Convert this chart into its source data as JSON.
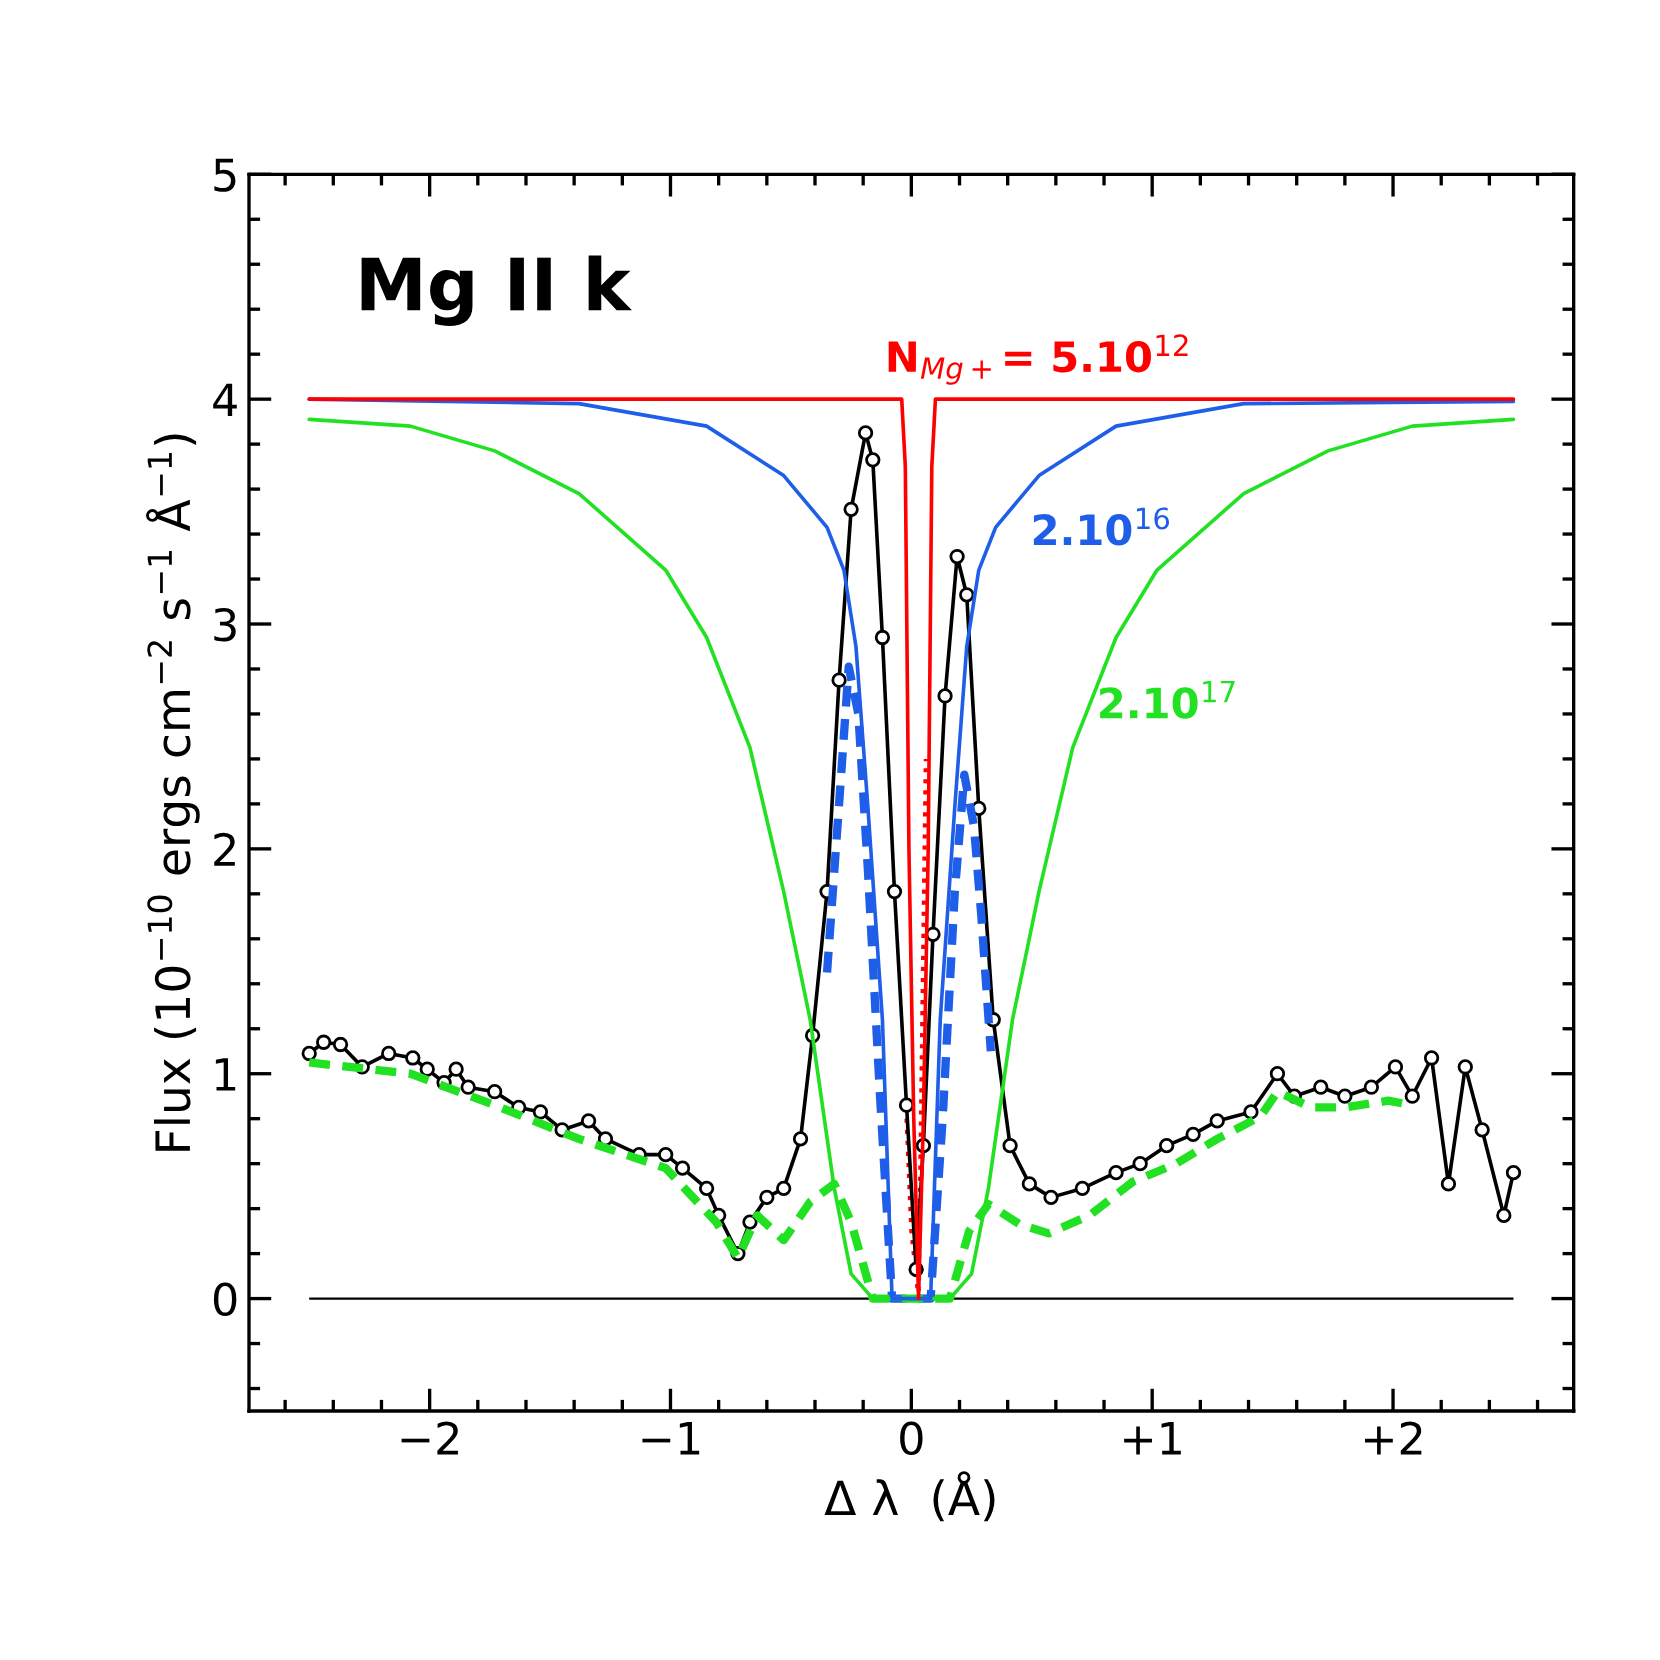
{
  "chart_data": {
    "type": "line",
    "title": "Mg II k",
    "xlabel": "Δ λ  (Å)",
    "ylabel": "Flux (10$^{−10}$ ergs cm$^{−2}$ s$^{−1}$ Å$^{−1}$)",
    "xlim": [
      -2.75,
      2.75
    ],
    "ylim": [
      -0.5,
      5
    ],
    "xticks": [
      {
        "value": -2,
        "label": "−2"
      },
      {
        "value": -1,
        "label": "−1"
      },
      0,
      {
        "value": 1,
        "label": "+1"
      },
      {
        "value": 2,
        "label": "+2"
      }
    ],
    "yticks": [
      0,
      1,
      2,
      3,
      4,
      5
    ],
    "grid": false,
    "legend": false,
    "ref_lines": [
      {
        "axis": "y",
        "value": 0,
        "color": "#000000",
        "line_style": "solid"
      }
    ],
    "series": [
      {
        "name": "N$_{Mg+}$= 5.10$^{12}$",
        "color": "#ff0000",
        "line_style": "solid",
        "marker": "none",
        "x": [
          -2.5,
          -0.04,
          -0.025,
          -0.01,
          0.01,
          0.03,
          0.05,
          0.07,
          0.085,
          0.1,
          2.5
        ],
        "values": [
          4.0,
          4.0,
          3.7,
          2.0,
          0.8,
          0.0,
          0.8,
          2.0,
          3.7,
          4.0,
          4.0
        ]
      },
      {
        "name": "2.10$^{16}$",
        "color": "#1f5ee8",
        "line_style": "solid",
        "marker": "none",
        "x": [
          -2.5,
          -1.38,
          -0.85,
          -0.53,
          -0.35,
          -0.28,
          -0.23,
          -0.18,
          -0.12,
          -0.08,
          0.08,
          0.12,
          0.18,
          0.23,
          0.28,
          0.35,
          0.53,
          0.85,
          1.38,
          2.5
        ],
        "values": [
          4.0,
          3.98,
          3.88,
          3.66,
          3.43,
          3.24,
          2.9,
          2.18,
          1.24,
          0.0,
          0.0,
          1.24,
          2.18,
          2.9,
          3.24,
          3.43,
          3.66,
          3.88,
          3.98,
          3.99
        ]
      },
      {
        "name": "2.10$^{17}$",
        "color": "#22e022",
        "line_style": "solid",
        "marker": "none",
        "x": [
          -2.5,
          -2.08,
          -1.73,
          -1.38,
          -1.02,
          -0.85,
          -0.67,
          -0.53,
          -0.42,
          -0.32,
          -0.25,
          -0.16,
          0.16,
          0.25,
          0.32,
          0.42,
          0.53,
          0.67,
          0.85,
          1.02,
          1.38,
          1.73,
          2.08,
          2.5
        ],
        "values": [
          3.91,
          3.88,
          3.77,
          3.58,
          3.24,
          2.94,
          2.45,
          1.81,
          1.24,
          0.49,
          0.11,
          0.0,
          0.0,
          0.11,
          0.49,
          1.24,
          1.81,
          2.45,
          2.94,
          3.24,
          3.58,
          3.77,
          3.88,
          3.91
        ]
      },
      {
        "color": "#22e022",
        "line_style": "dashed",
        "marker": "none",
        "x": [
          -2.5,
          -2.08,
          -1.73,
          -1.38,
          -1.02,
          -0.81,
          -0.72,
          -0.64,
          -0.53,
          -0.42,
          -0.32,
          -0.25,
          -0.16,
          0.16,
          0.24,
          0.32,
          0.45,
          0.57,
          0.74,
          0.92,
          1.1,
          1.27,
          1.45,
          1.52,
          1.66,
          1.8,
          1.98,
          2.08
        ],
        "values": [
          1.05,
          1.0,
          0.86,
          0.71,
          0.58,
          0.34,
          0.18,
          0.37,
          0.26,
          0.43,
          0.51,
          0.34,
          0.0,
          0.0,
          0.3,
          0.42,
          0.33,
          0.29,
          0.37,
          0.52,
          0.6,
          0.71,
          0.81,
          0.92,
          0.85,
          0.85,
          0.88,
          0.86
        ]
      },
      {
        "color": "#1f5ee8",
        "line_style": "dashed",
        "marker": "none",
        "x": [
          -0.35,
          -0.3,
          -0.26,
          -0.22,
          -0.18,
          -0.13,
          -0.08,
          0.08,
          0.13,
          0.18,
          0.22,
          0.26,
          0.29,
          0.33
        ],
        "values": [
          1.45,
          2.2,
          2.81,
          2.6,
          1.9,
          0.9,
          0.0,
          0.0,
          0.8,
          1.8,
          2.33,
          2.1,
          1.71,
          1.1
        ]
      },
      {
        "color": "#000000",
        "line_style": "solid",
        "marker": "circle",
        "x": [
          -2.5,
          -2.44,
          -2.37,
          -2.28,
          -2.17,
          -2.07,
          -2.01,
          -1.94,
          -1.89,
          -1.84,
          -1.73,
          -1.63,
          -1.54,
          -1.45,
          -1.34,
          -1.27,
          -1.13,
          -1.02,
          -0.95,
          -0.85,
          -0.8,
          -0.72,
          -0.67,
          -0.6,
          -0.53,
          -0.46,
          -0.41,
          -0.35,
          -0.3,
          -0.25,
          -0.19,
          -0.16,
          -0.12,
          -0.07,
          -0.02,
          0.02,
          0.05,
          0.09,
          0.14,
          0.19,
          0.23,
          0.28,
          0.34,
          0.41,
          0.49,
          0.58,
          0.71,
          0.85,
          0.95,
          1.06,
          1.17,
          1.27,
          1.41,
          1.52,
          1.59,
          1.7,
          1.8,
          1.91,
          2.01,
          2.08,
          2.16,
          2.23,
          2.3,
          2.37,
          2.46,
          2.5
        ],
        "values": [
          1.09,
          1.14,
          1.13,
          1.03,
          1.09,
          1.07,
          1.02,
          0.96,
          1.02,
          0.94,
          0.92,
          0.85,
          0.83,
          0.75,
          0.79,
          0.71,
          0.64,
          0.64,
          0.58,
          0.49,
          0.37,
          0.2,
          0.34,
          0.45,
          0.49,
          0.71,
          1.17,
          1.81,
          2.75,
          3.51,
          3.85,
          3.73,
          2.94,
          1.81,
          0.86,
          0.13,
          0.68,
          1.62,
          2.68,
          3.3,
          3.13,
          2.18,
          1.24,
          0.68,
          0.51,
          0.45,
          0.49,
          0.56,
          0.6,
          0.68,
          0.73,
          0.79,
          0.83,
          1.0,
          0.9,
          0.94,
          0.9,
          0.94,
          1.03,
          0.9,
          1.07,
          0.51,
          1.03,
          0.75,
          0.37,
          0.56
        ]
      },
      {
        "color": "#ff0000",
        "line_style": "dotted",
        "marker": "none",
        "x": [
          -0.02,
          0.0,
          0.03,
          0.04,
          0.05,
          0.06
        ],
        "values": [
          0.8,
          0.3,
          0.0,
          0.8,
          1.6,
          2.4
        ]
      }
    ]
  }
}
